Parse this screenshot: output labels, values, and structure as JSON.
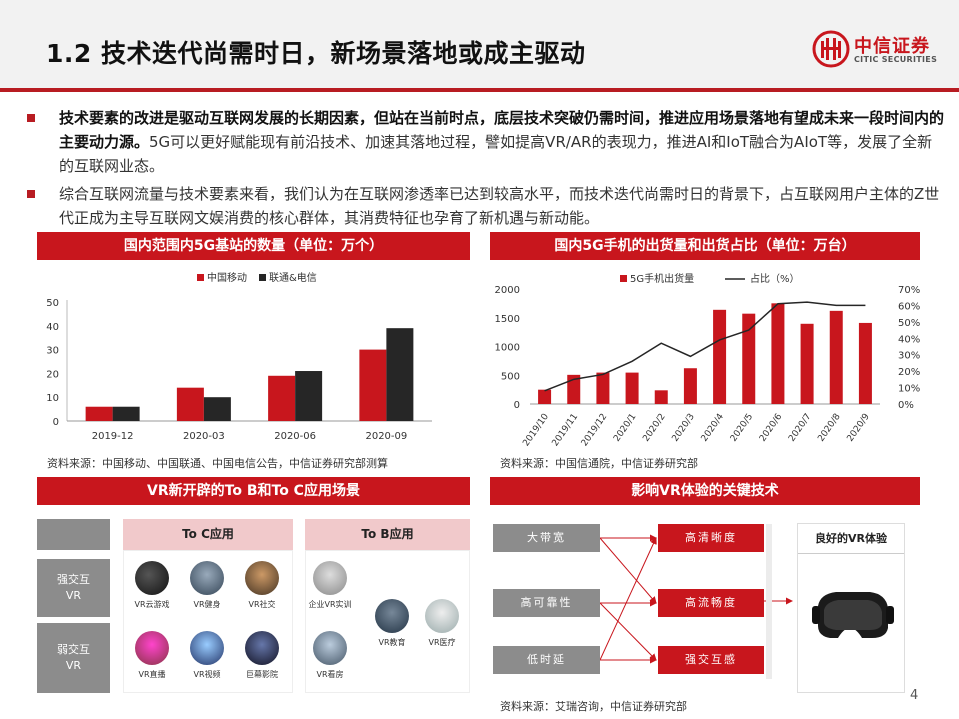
{
  "header": {
    "title": "1.2 技术迭代尚需时日，新场景落地或成主驱动",
    "logo_cn": "中信证券",
    "logo_en": "CITIC SECURITIES"
  },
  "bullets": [
    {
      "bold": "技术要素的改进是驱动互联网发展的长期因素，但站在当前时点，底层技术突破仍需时间，推进应用场景落地有望成未来一段时间内的主要动力源。",
      "text": "5G可以更好赋能现有前沿技术、加速其落地过程，譬如提高VR/AR的表现力，推进AI和IoT融合为AIoT等，发展了全新的互联网业态。"
    },
    {
      "bold": "",
      "text": "综合互联网流量与技术要素来看，我们认为在互联网渗透率已达到较高水平，而技术迭代尚需时日的背景下，占互联网用户主体的Z世代正成为主导互联网文娱消费的核心群体，其消费特征也孕育了新机遇与新动能。"
    }
  ],
  "panels": {
    "chart1_title": "国内范围内5G基站的数量（单位：万个）",
    "chart2_title": "国内5G手机的出货量和出货占比（单位：万台）",
    "vr_title": "VR新开辟的To B和To C应用场景",
    "tech_title": "影响VR体验的关键技术"
  },
  "sources": {
    "chart1": "资料来源：中国移动、中国联通、中国电信公告，中信证券研究部测算",
    "chart2": "资料来源：中国信通院，中信证券研究部",
    "bottom": "资料来源：艾瑞咨询，中信证券研究部"
  },
  "chart_data": [
    {
      "type": "bar",
      "categories": [
        "2019-12",
        "2020-03",
        "2020-06",
        "2020-09"
      ],
      "series": [
        {
          "name": "中国移动",
          "color": "#c8161d",
          "values": [
            6,
            14,
            19,
            30
          ]
        },
        {
          "name": "联通&电信",
          "color": "#262626",
          "values": [
            6,
            10,
            21,
            39
          ]
        }
      ],
      "yticks": [
        "0",
        "10",
        "20",
        "30",
        "40",
        "50"
      ],
      "ylim": [
        0,
        50
      ],
      "legend": "top-center"
    },
    {
      "type": "bar",
      "categories": [
        "2019/10",
        "2019/11",
        "2019/12",
        "2020/1",
        "2020/2",
        "2020/3",
        "2020/4",
        "2020/5",
        "2020/6",
        "2020/7",
        "2020/8",
        "2020/9"
      ],
      "series": [
        {
          "name": "5G手机出货量",
          "color": "#c8161d",
          "axis": "left",
          "values": [
            249,
            507,
            546,
            546,
            238,
            622,
            1638,
            1571,
            1751,
            1395,
            1620,
            1410
          ]
        },
        {
          "name": "占比（%）",
          "color": "#262626",
          "axis": "right",
          "type": "line",
          "values": [
            8,
            15,
            18,
            26,
            37,
            29,
            39,
            45,
            61,
            62,
            60,
            60
          ]
        }
      ],
      "yticks_left": [
        "0",
        "500",
        "1000",
        "1500",
        "2000"
      ],
      "ylim_left": [
        0,
        2000
      ],
      "yticks_right": [
        "0%",
        "10%",
        "20%",
        "30%",
        "40%",
        "50%",
        "60%",
        "70%"
      ],
      "ylim_right": [
        0,
        70
      ],
      "legend": "top-center"
    }
  ],
  "vr_scenes": {
    "toc_label": "To C应用",
    "tob_label": "To B应用",
    "row_strong": [
      "强交互",
      "VR"
    ],
    "row_weak": [
      "弱交互",
      "VR"
    ],
    "strong_toc": [
      "VR云游戏",
      "VR健身",
      "VR社交"
    ],
    "strong_tob": [
      "企业VR实训"
    ],
    "weak_toc": [
      "VR直播",
      "VR视频",
      "巨幕影院"
    ],
    "weak_tob": [
      "VR看房"
    ],
    "shared_tob": [
      "VR教育",
      "VR医疗"
    ]
  },
  "vr_tech": {
    "inputs": [
      "大带宽",
      "高可靠性",
      "低时延"
    ],
    "outputs": [
      "高清晰度",
      "高流畅度",
      "强交互感"
    ],
    "result": "良好的VR体验"
  },
  "page_number": "4"
}
